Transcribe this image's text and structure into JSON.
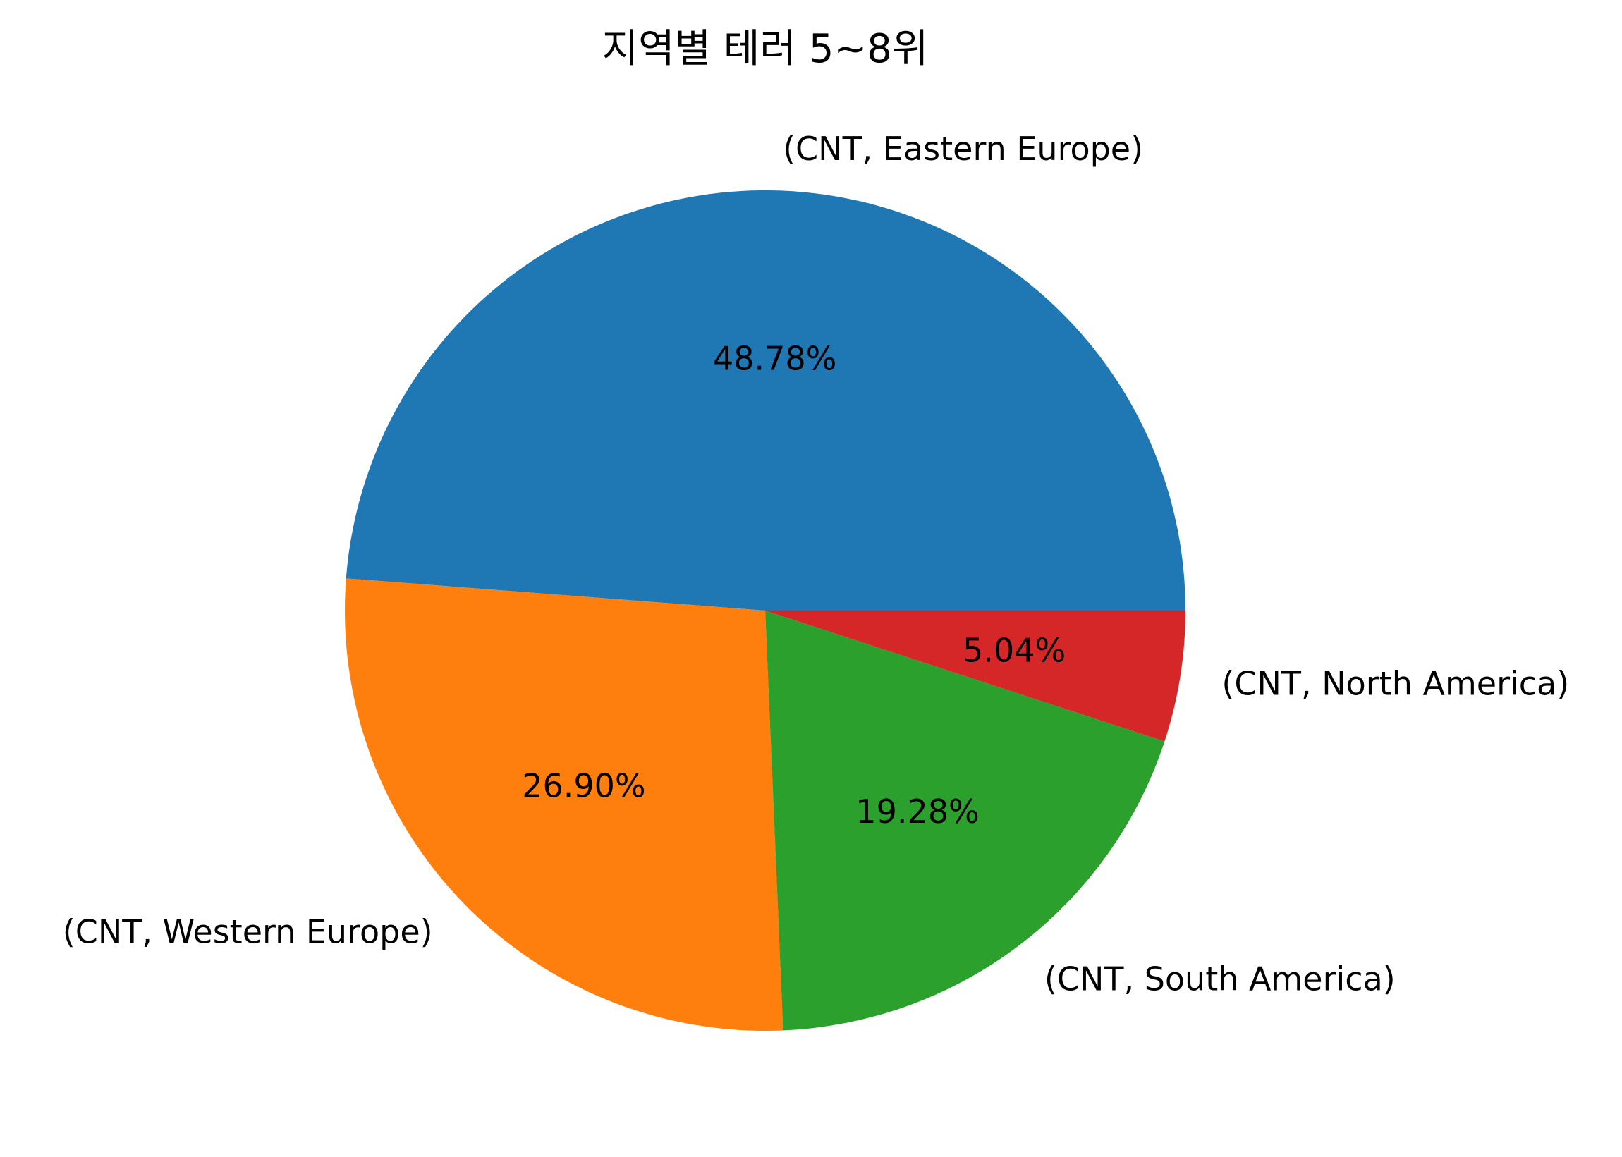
{
  "chart_data": {
    "type": "pie",
    "title": "지역별 테러 5~8위",
    "categories": [
      "(CNT, Eastern Europe)",
      "(CNT, Western Europe)",
      "(CNT, South America)",
      "(CNT, North America)"
    ],
    "values": [
      48.78,
      26.9,
      19.28,
      5.04
    ],
    "value_labels": [
      "48.78%",
      "26.90%",
      "19.28%",
      "5.04%"
    ],
    "colors": [
      "#1f77b4",
      "#ff7f0e",
      "#2ca02c",
      "#d62728"
    ],
    "start_angle": "0 degrees (3 o'clock)",
    "direction": "counterclockwise",
    "legend": "none"
  }
}
